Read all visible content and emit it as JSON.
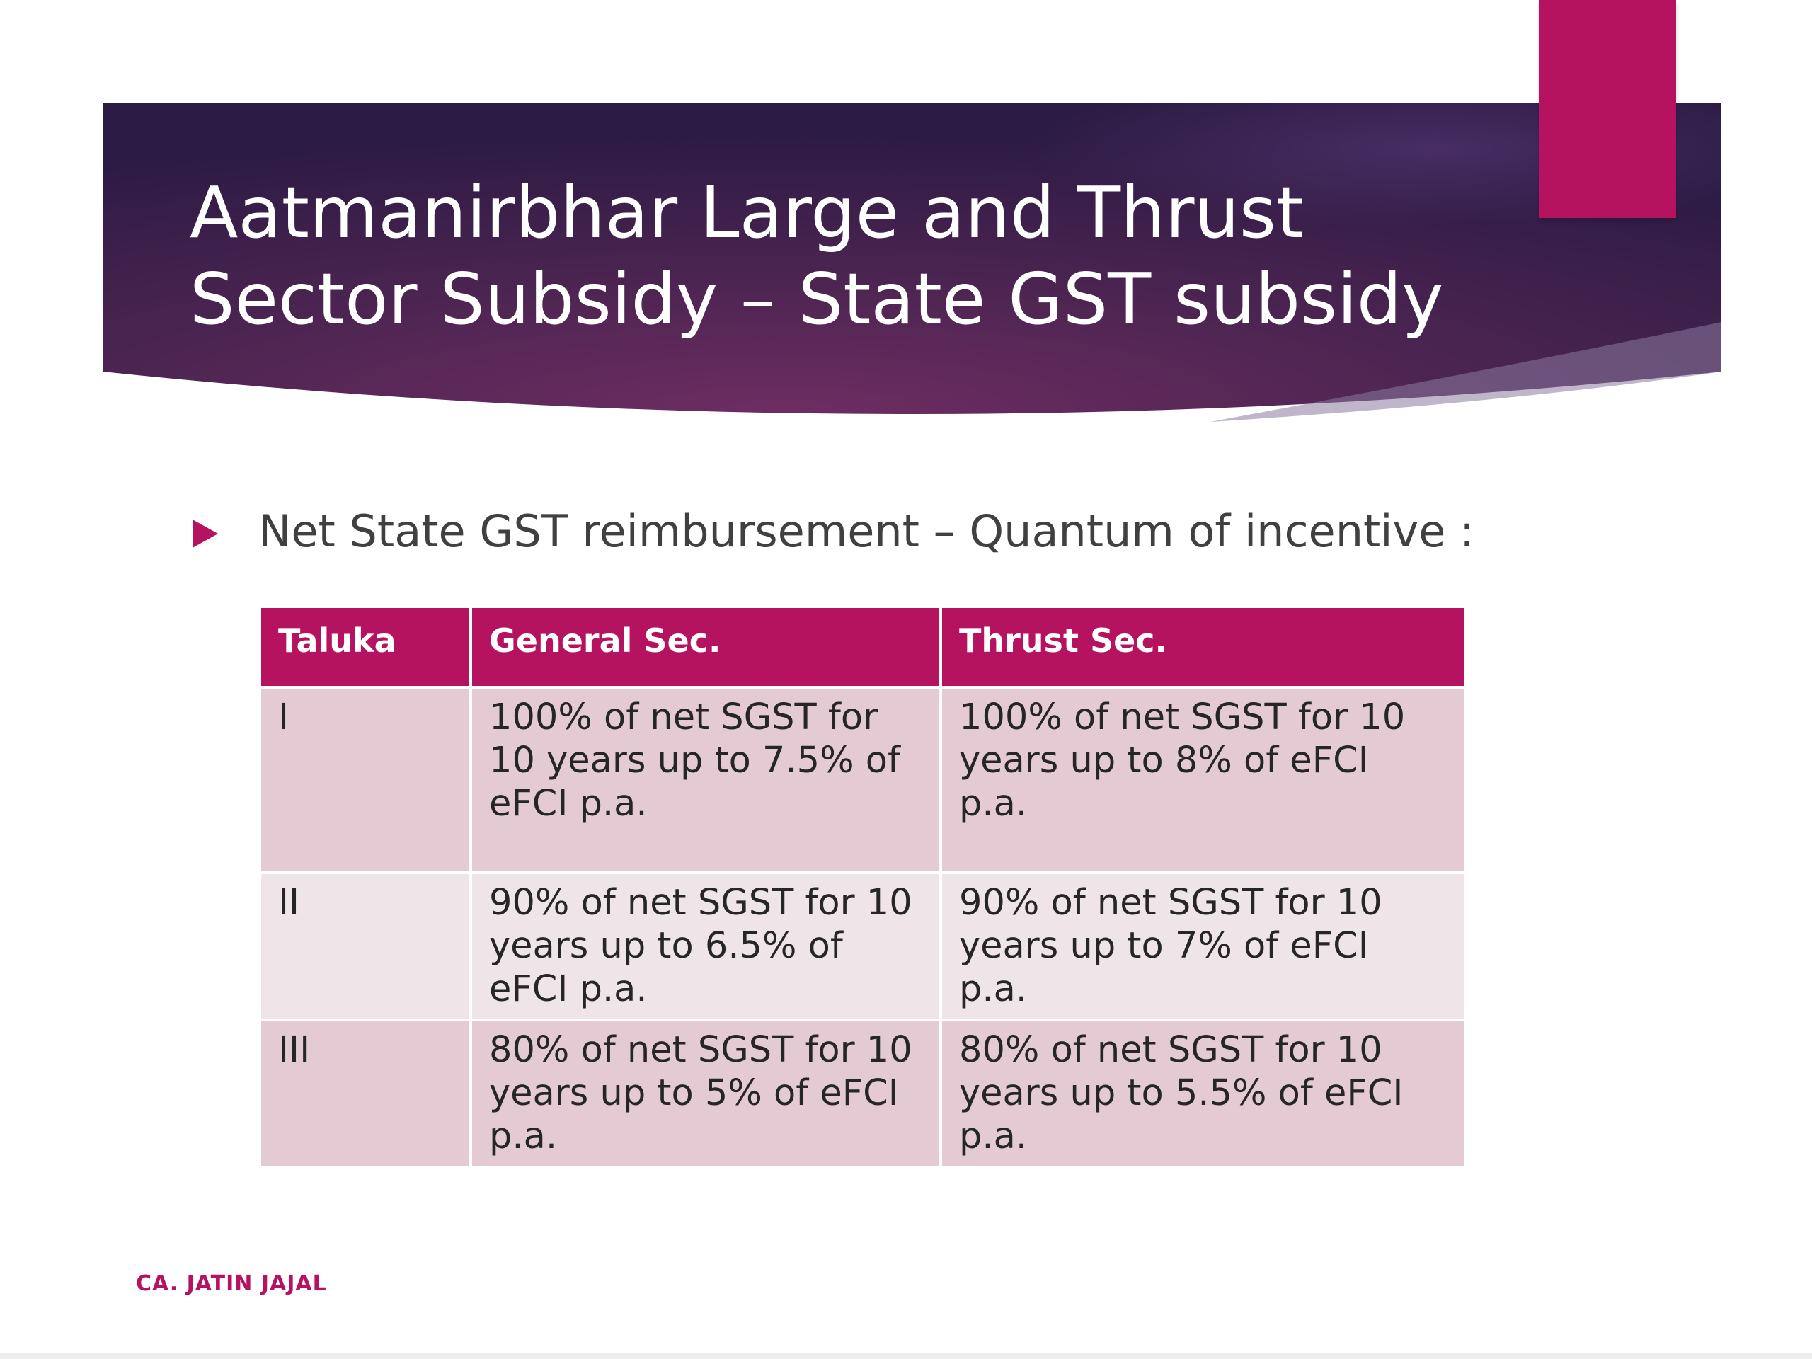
{
  "slide": {
    "title_line1": "Aatmanirbhar Large and Thrust",
    "title_line2": "Sector Subsidy – State GST subsidy",
    "bullet": "Net State GST reimbursement – Quantum of incentive :",
    "footer": "CA. JATIN JAJAL"
  },
  "table": {
    "headers": [
      "Taluka",
      "General Sec.",
      "Thrust Sec."
    ],
    "rows": [
      [
        "I",
        "100% of net SGST for 10 years up to 7.5% of eFCI p.a.",
        "100% of net SGST for 10 years up to 8% of eFCI p.a."
      ],
      [
        "II",
        "90% of net SGST for 10 years up to 6.5% of eFCI p.a.",
        "90% of net SGST for 10 years up to 7% of eFCI p.a."
      ],
      [
        "III",
        "80% of net SGST for 10 years up to 5% of eFCI p.a.",
        "80% of net SGST for 10 years up to 5.5% of eFCI p.a."
      ]
    ]
  },
  "colors": {
    "accent": "#b5135f",
    "banner_dark": "#2f1a44",
    "banner_mid": "#6b2c5f",
    "row_dark": "#e4cbd3",
    "row_light": "#efe5e9"
  }
}
